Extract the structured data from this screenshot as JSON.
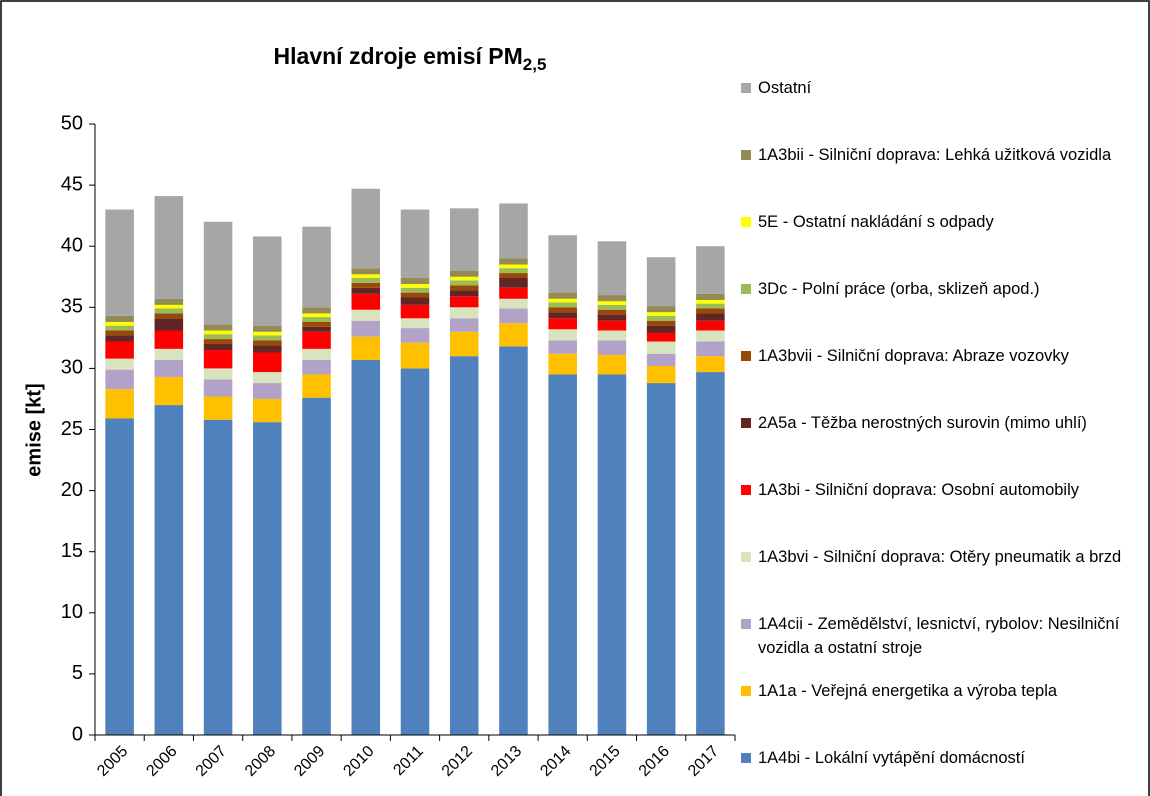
{
  "chart_data": {
    "type": "stacked_bar",
    "title": "Hlavní zdroje emisí PM",
    "title_subscript": "2,5",
    "ylabel": "emise [kt]",
    "categories": [
      "2005",
      "2006",
      "2007",
      "2008",
      "2009",
      "2010",
      "2011",
      "2012",
      "2013",
      "2014",
      "2015",
      "2016",
      "2017"
    ],
    "ylim": [
      0,
      50
    ],
    "yticks": [
      0,
      5,
      10,
      15,
      20,
      25,
      30,
      35,
      40,
      45,
      50
    ],
    "grid": false,
    "legend": "right",
    "series": [
      {
        "name": "1A4bi - Lokální vytápění domácností",
        "color": "#4f81bd",
        "values": [
          25.9,
          27.0,
          25.8,
          25.6,
          27.6,
          30.7,
          30.0,
          31.0,
          31.8,
          29.5,
          29.5,
          28.8,
          29.7
        ]
      },
      {
        "name": "1A1a - Veřejná energetika a výroba tepla",
        "color": "#ffc000",
        "values": [
          2.4,
          2.3,
          1.9,
          1.9,
          1.9,
          1.9,
          2.1,
          2.0,
          1.9,
          1.7,
          1.6,
          1.4,
          1.3
        ]
      },
      {
        "name": "1A4cii - Zemědělství, lesnictví, rybolov: Nesilniční vozidla a ostatní stroje",
        "color": "#b3a2c7",
        "values": [
          1.6,
          1.4,
          1.4,
          1.3,
          1.2,
          1.3,
          1.2,
          1.1,
          1.2,
          1.1,
          1.2,
          1.0,
          1.2
        ]
      },
      {
        "name": "1A3bvi - Silniční doprava: Otěry pneumatik a brzd",
        "color": "#d7e4bd",
        "values": [
          0.9,
          0.9,
          0.9,
          0.9,
          0.9,
          0.9,
          0.8,
          0.9,
          0.8,
          0.9,
          0.8,
          1.0,
          0.9
        ]
      },
      {
        "name": "1A3bi - Silniční doprava: Osobní automobily",
        "color": "#ff0000",
        "values": [
          1.4,
          1.5,
          1.5,
          1.6,
          1.4,
          1.3,
          1.1,
          0.9,
          0.9,
          0.9,
          0.8,
          0.7,
          0.8
        ]
      },
      {
        "name": "2A5a - Těžba nerostných surovin (mimo uhlí)",
        "color": "#632523",
        "values": [
          0.5,
          1.0,
          0.5,
          0.6,
          0.4,
          0.5,
          0.6,
          0.5,
          0.8,
          0.5,
          0.5,
          0.6,
          0.6
        ]
      },
      {
        "name": "1A3bvii - Silniční doprava: Abraze vozovky",
        "color": "#984807",
        "values": [
          0.4,
          0.4,
          0.4,
          0.4,
          0.4,
          0.4,
          0.4,
          0.4,
          0.4,
          0.4,
          0.4,
          0.4,
          0.4
        ]
      },
      {
        "name": "3Dc - Polní práce (orba, sklizeň apod.)",
        "color": "#9bbb59",
        "values": [
          0.4,
          0.4,
          0.4,
          0.4,
          0.4,
          0.4,
          0.4,
          0.4,
          0.4,
          0.4,
          0.4,
          0.4,
          0.4
        ]
      },
      {
        "name": "5E - Ostatní nakládání s odpady",
        "color": "#ffff00",
        "values": [
          0.3,
          0.3,
          0.3,
          0.3,
          0.3,
          0.3,
          0.3,
          0.3,
          0.3,
          0.3,
          0.3,
          0.3,
          0.3
        ]
      },
      {
        "name": "1A3bii - Silniční doprava: Lehká užitková vozidla",
        "color": "#948a54",
        "values": [
          0.5,
          0.5,
          0.5,
          0.5,
          0.5,
          0.5,
          0.5,
          0.5,
          0.5,
          0.5,
          0.5,
          0.5,
          0.5
        ]
      },
      {
        "name": "Ostatní",
        "color": "#a6a6a6",
        "values": [
          8.7,
          8.4,
          8.4,
          7.3,
          6.6,
          6.5,
          5.6,
          5.1,
          4.5,
          4.7,
          4.4,
          4.0,
          3.9
        ]
      }
    ]
  }
}
